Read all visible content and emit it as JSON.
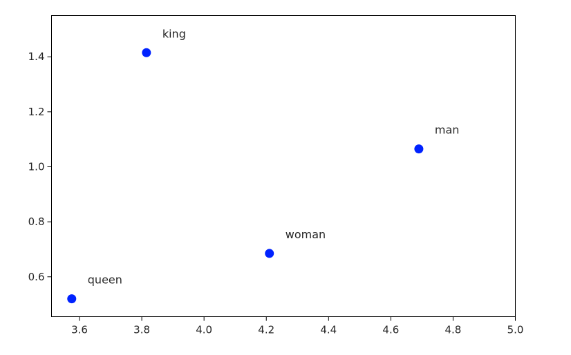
{
  "chart_data": {
    "type": "scatter",
    "title": "",
    "xlabel": "",
    "ylabel": "",
    "xlim": [
      3.51,
      5.0
    ],
    "ylim": [
      0.455,
      1.55
    ],
    "xticks": [
      3.6,
      3.8,
      4.0,
      4.2,
      4.4,
      4.6,
      4.8,
      5.0
    ],
    "yticks": [
      0.6,
      0.8,
      1.0,
      1.2,
      1.4
    ],
    "xtick_labels": [
      "3.6",
      "3.8",
      "4.0",
      "4.2",
      "4.4",
      "4.6",
      "4.8",
      "5.0"
    ],
    "ytick_labels": [
      "0.6",
      "0.8",
      "1.0",
      "1.2",
      "1.4"
    ],
    "grid": false,
    "marker_color": "#0022ff",
    "points": [
      {
        "label": "king",
        "x": 3.815,
        "y": 1.415
      },
      {
        "label": "man",
        "x": 4.69,
        "y": 1.065
      },
      {
        "label": "woman",
        "x": 4.21,
        "y": 0.685
      },
      {
        "label": "queen",
        "x": 3.575,
        "y": 0.52
      }
    ]
  }
}
